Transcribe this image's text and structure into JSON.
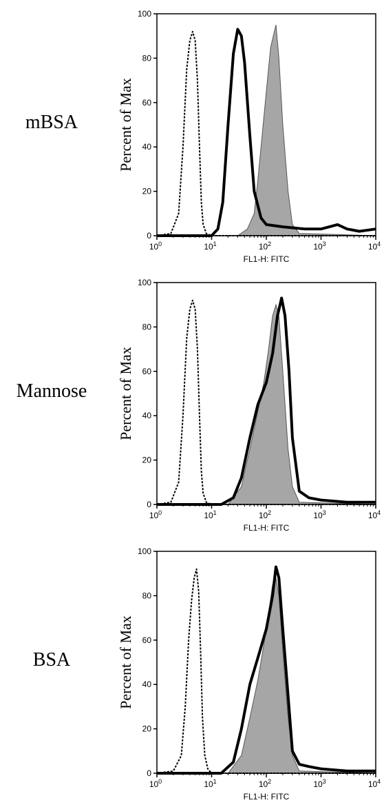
{
  "chart_data": [
    {
      "type": "area",
      "row_label": "mBSA",
      "xlabel": "FL1-H: FITC",
      "ylabel": "Percent of Max",
      "x_scale": "log",
      "xlim": [
        1,
        10000
      ],
      "ylim": [
        0,
        100
      ],
      "x_ticks": [
        {
          "base": "10",
          "exp": "0"
        },
        {
          "base": "10",
          "exp": "1"
        },
        {
          "base": "10",
          "exp": "2"
        },
        {
          "base": "10",
          "exp": "3"
        },
        {
          "base": "10",
          "exp": "4"
        }
      ],
      "y_ticks": [
        "0",
        "20",
        "40",
        "60",
        "80",
        "100"
      ],
      "series": [
        {
          "style": "dotted",
          "color": "#000000",
          "x": [
            1,
            1.8,
            2.5,
            3.0,
            3.5,
            4.0,
            4.5,
            5.0,
            5.5,
            6.0,
            6.5,
            7.0,
            8.0,
            10,
            20,
            10000
          ],
          "y": [
            0,
            1,
            10,
            40,
            75,
            88,
            92,
            88,
            70,
            40,
            15,
            5,
            1,
            0,
            0,
            0
          ]
        },
        {
          "style": "thick",
          "color": "#000000",
          "x": [
            1,
            10,
            13,
            16,
            20,
            25,
            30,
            35,
            40,
            50,
            60,
            80,
            100,
            200,
            500,
            1000,
            2000,
            3000,
            5000,
            10000
          ],
          "y": [
            0,
            0,
            3,
            15,
            50,
            82,
            93,
            90,
            78,
            45,
            20,
            8,
            5,
            4,
            3,
            3,
            5,
            3,
            2,
            3
          ]
        },
        {
          "style": "filled",
          "color": "#a6a6a6",
          "x": [
            1,
            30,
            45,
            60,
            70,
            80,
            100,
            120,
            150,
            170,
            200,
            250,
            300,
            400,
            10000
          ],
          "y": [
            0,
            0,
            3,
            10,
            25,
            40,
            65,
            85,
            95,
            80,
            50,
            20,
            5,
            1,
            0
          ]
        }
      ]
    },
    {
      "type": "area",
      "row_label": "Mannose",
      "xlabel": "FL1-H: FITC",
      "ylabel": "Percent of Max",
      "x_scale": "log",
      "xlim": [
        1,
        10000
      ],
      "ylim": [
        0,
        100
      ],
      "x_ticks": [
        {
          "base": "10",
          "exp": "0"
        },
        {
          "base": "10",
          "exp": "1"
        },
        {
          "base": "10",
          "exp": "2"
        },
        {
          "base": "10",
          "exp": "3"
        },
        {
          "base": "10",
          "exp": "4"
        }
      ],
      "y_ticks": [
        "0",
        "20",
        "40",
        "60",
        "80",
        "100"
      ],
      "series": [
        {
          "style": "dotted",
          "color": "#000000",
          "x": [
            1,
            1.8,
            2.5,
            3.0,
            3.5,
            4.0,
            4.5,
            5.0,
            5.5,
            6.0,
            6.5,
            7.0,
            8.0,
            10,
            20,
            10000
          ],
          "y": [
            0,
            1,
            10,
            40,
            75,
            88,
            92,
            88,
            70,
            40,
            15,
            5,
            1,
            0,
            0,
            0
          ]
        },
        {
          "style": "thick",
          "color": "#000000",
          "x": [
            1,
            15,
            25,
            35,
            50,
            70,
            100,
            130,
            160,
            190,
            220,
            260,
            300,
            400,
            600,
            1000,
            3000,
            10000
          ],
          "y": [
            0,
            0,
            3,
            12,
            30,
            45,
            55,
            68,
            85,
            93,
            85,
            60,
            30,
            6,
            3,
            2,
            1,
            1
          ]
        },
        {
          "style": "filled",
          "color": "#a6a6a6",
          "x": [
            1,
            20,
            35,
            50,
            70,
            90,
            110,
            130,
            150,
            170,
            200,
            250,
            300,
            400,
            10000
          ],
          "y": [
            0,
            0,
            8,
            25,
            42,
            55,
            70,
            85,
            90,
            85,
            60,
            25,
            8,
            1,
            0
          ]
        }
      ]
    },
    {
      "type": "area",
      "row_label": "BSA",
      "xlabel": "FL1-H: FITC",
      "ylabel": "Percent of Max",
      "x_scale": "log",
      "xlim": [
        1,
        10000
      ],
      "ylim": [
        0,
        100
      ],
      "x_ticks": [
        {
          "base": "10",
          "exp": "0"
        },
        {
          "base": "10",
          "exp": "1"
        },
        {
          "base": "10",
          "exp": "2"
        },
        {
          "base": "10",
          "exp": "3"
        },
        {
          "base": "10",
          "exp": "4"
        }
      ],
      "y_ticks": [
        "0",
        "20",
        "40",
        "60",
        "80",
        "100"
      ],
      "series": [
        {
          "style": "dotted",
          "color": "#000000",
          "x": [
            1,
            2.0,
            2.8,
            3.3,
            3.8,
            4.3,
            4.8,
            5.3,
            5.8,
            6.3,
            6.8,
            7.5,
            8.5,
            10,
            20,
            10000
          ],
          "y": [
            0,
            1,
            8,
            30,
            60,
            78,
            88,
            92,
            82,
            55,
            25,
            8,
            2,
            0,
            0,
            0
          ]
        },
        {
          "style": "thick",
          "color": "#000000",
          "x": [
            1,
            15,
            25,
            35,
            50,
            70,
            100,
            130,
            150,
            170,
            200,
            250,
            300,
            400,
            600,
            1000,
            3000,
            10000
          ],
          "y": [
            0,
            0,
            5,
            20,
            40,
            52,
            65,
            80,
            93,
            88,
            65,
            35,
            10,
            4,
            3,
            2,
            1,
            1
          ]
        },
        {
          "style": "filled",
          "color": "#a6a6a6",
          "x": [
            1,
            20,
            35,
            50,
            70,
            90,
            110,
            130,
            150,
            170,
            200,
            250,
            300,
            400,
            10000
          ],
          "y": [
            0,
            0,
            8,
            25,
            42,
            58,
            72,
            85,
            88,
            80,
            55,
            25,
            8,
            1,
            0
          ]
        }
      ]
    }
  ]
}
